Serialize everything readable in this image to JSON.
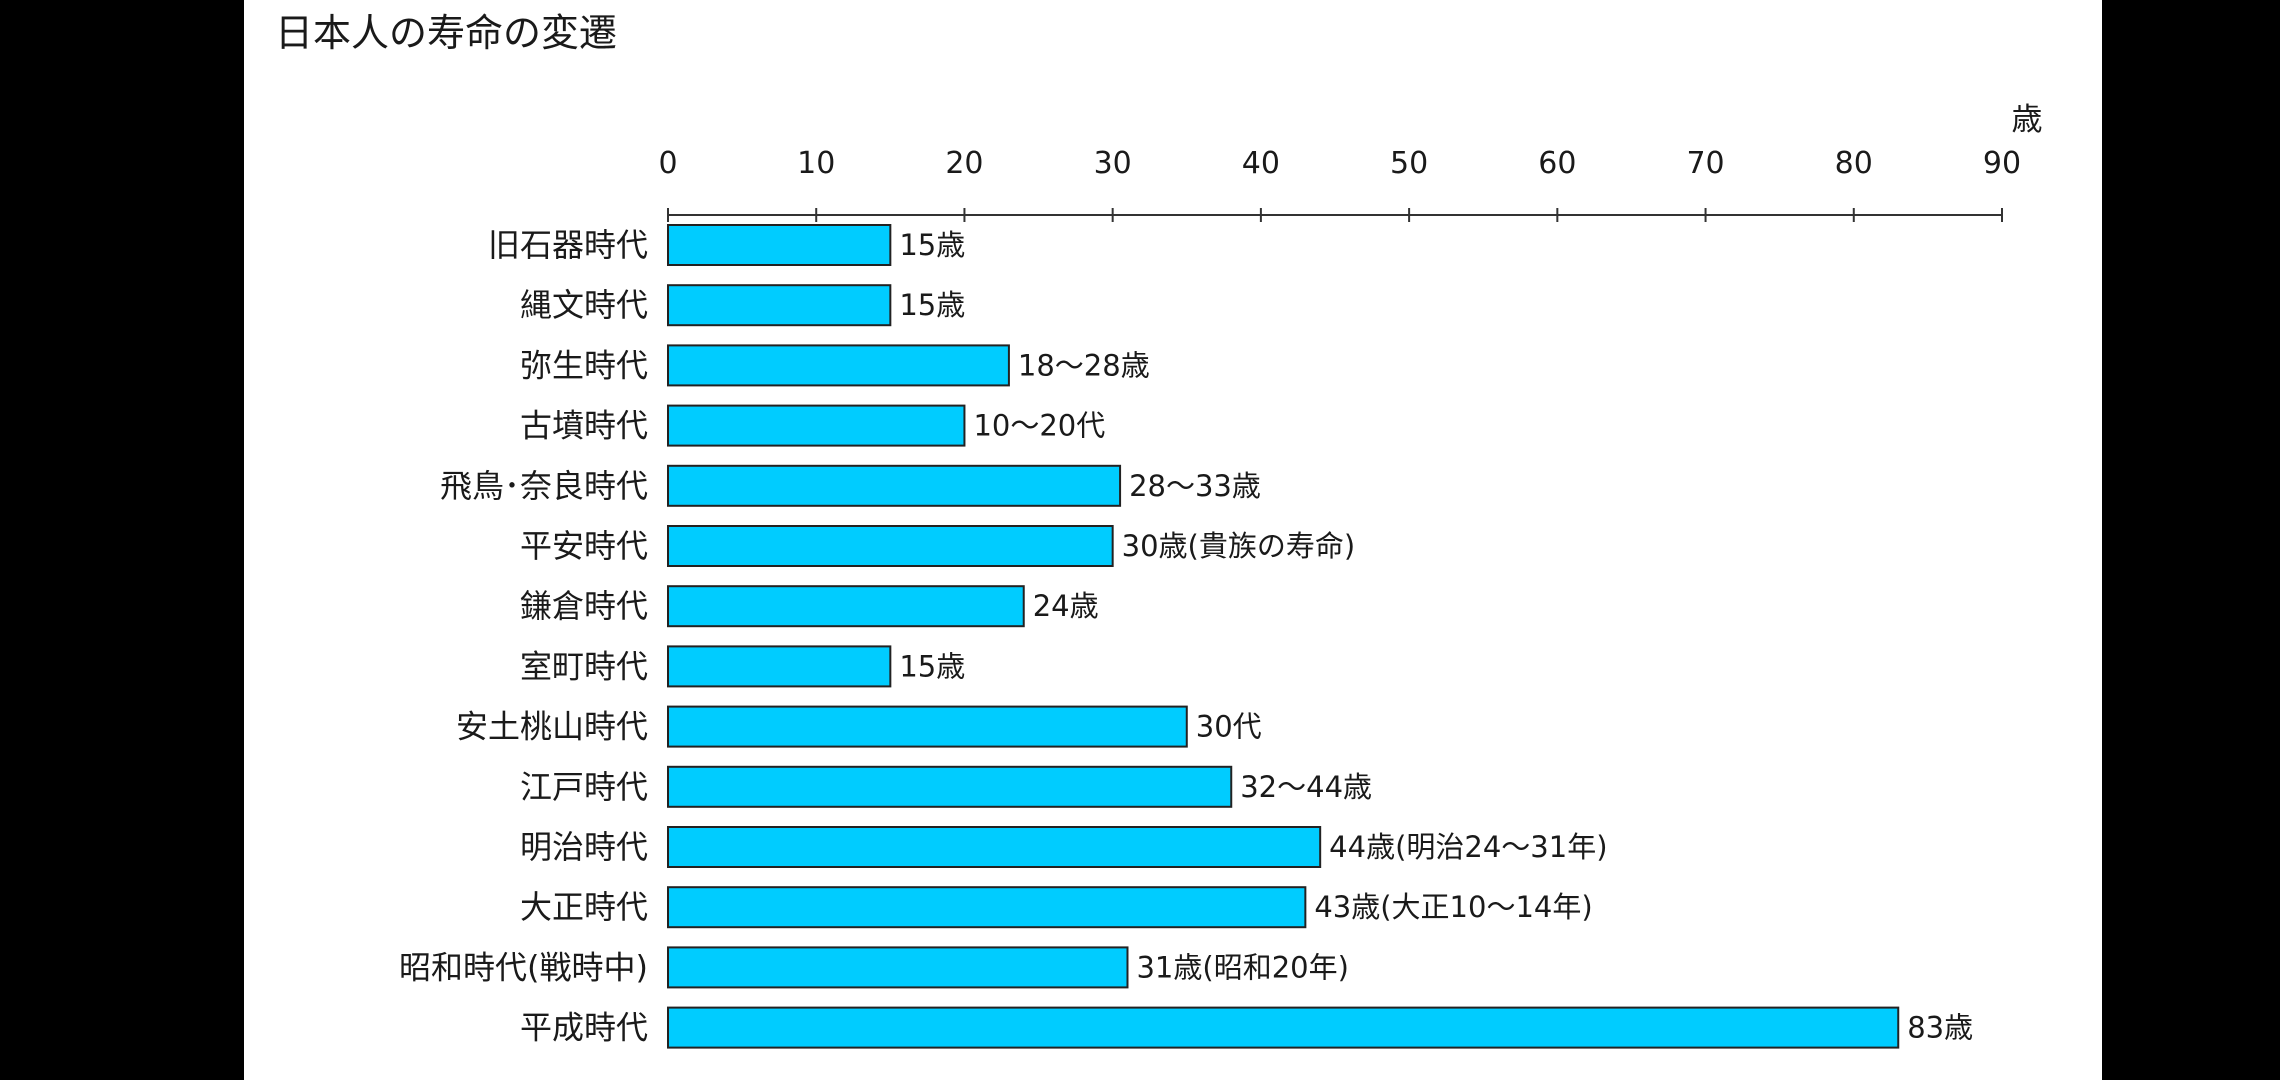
{
  "chart_data": {
    "type": "bar",
    "orientation": "horizontal",
    "title": "日本人の寿命の変遷",
    "xlabel": "",
    "ylabel": "",
    "unit_label": "歳",
    "xlim": [
      0,
      90
    ],
    "ticks": [
      0,
      10,
      20,
      30,
      40,
      50,
      60,
      70,
      80,
      90
    ],
    "grid": false,
    "legend": "none",
    "bar_color": "#00ccff",
    "categories": [
      "旧石器時代",
      "縄文時代",
      "弥生時代",
      "古墳時代",
      "飛鳥･奈良時代",
      "平安時代",
      "鎌倉時代",
      "室町時代",
      "安土桃山時代",
      "江戸時代",
      "明治時代",
      "大正時代",
      "昭和時代(戦時中)",
      "平成時代"
    ],
    "values": [
      15,
      15,
      23,
      20,
      30.5,
      30,
      24,
      15,
      35,
      38,
      44,
      43,
      31,
      83
    ],
    "data_labels": [
      "15歳",
      "15歳",
      "18〜28歳",
      "10〜20代",
      "28〜33歳",
      "30歳(貴族の寿命)",
      "24歳",
      "15歳",
      "30代",
      "32〜44歳",
      "44歳(明治24〜31年)",
      "43歳(大正10〜14年)",
      "31歳(昭和20年)",
      "83歳"
    ]
  }
}
